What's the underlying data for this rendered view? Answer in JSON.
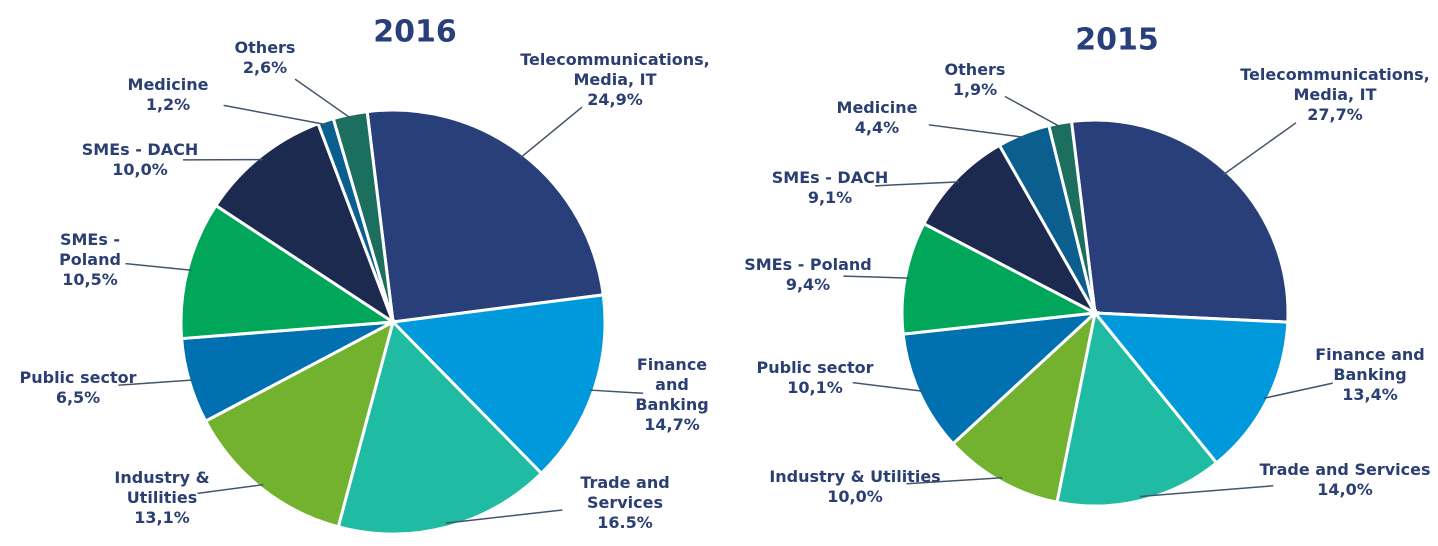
{
  "chart_data": [
    {
      "type": "pie",
      "title": "2016",
      "categories": [
        "Telecommunications, Media, IT",
        "Finance and Banking",
        "Trade and Services",
        "Industry & Utilities",
        "Public sector",
        "SMEs - Poland",
        "SMEs - DACH",
        "Medicine",
        "Others"
      ],
      "values": [
        24.9,
        14.7,
        16.5,
        13.1,
        6.5,
        10.5,
        10.0,
        1.2,
        2.6
      ],
      "value_labels": [
        "24,9%",
        "14,7%",
        "16.5%",
        "13,1%",
        "6,5%",
        "10,5%",
        "10,0%",
        "1,2%",
        "2,6%"
      ],
      "colors": [
        "#283f7a",
        "#0099dc",
        "#20bba3",
        "#72b22e",
        "#0070b0",
        "#00a65a",
        "#1b2a4e",
        "#0a5f8e",
        "#1c6e5f"
      ]
    },
    {
      "type": "pie",
      "title": "2015",
      "categories": [
        "Telecommunications, Media, IT",
        "Finance and Banking",
        "Trade and Services",
        "Industry & Utilities",
        "Public sector",
        "SMEs - Poland",
        "SMEs - DACH",
        "Medicine",
        "Others"
      ],
      "values": [
        27.7,
        13.4,
        14.0,
        10.0,
        10.1,
        9.4,
        9.1,
        4.4,
        1.9
      ],
      "value_labels": [
        "27,7%",
        "13,4%",
        "14,0%",
        "10,0%",
        "10,1%",
        "9,4%",
        "9,1%",
        "4,4%",
        "1,9%"
      ],
      "colors": [
        "#283f7a",
        "#0099dc",
        "#20bba3",
        "#72b22e",
        "#0070b0",
        "#00a65a",
        "#1b2a4e",
        "#0a5f8e",
        "#1c6e5f"
      ]
    }
  ]
}
